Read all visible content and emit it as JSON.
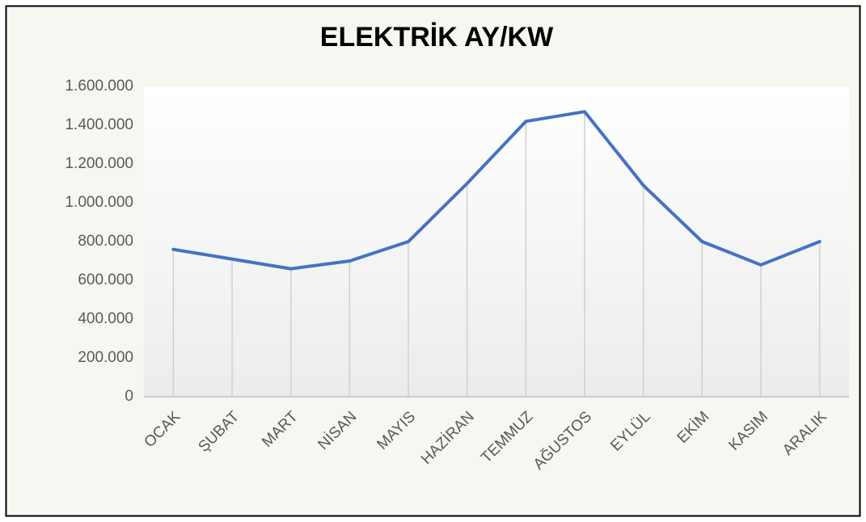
{
  "chart_data": {
    "type": "line",
    "title": "ELEKTRİK  AY/KW",
    "categories": [
      "OCAK",
      "ŞUBAT",
      "MART",
      "NİSAN",
      "MAYIS",
      "HAZİRAN",
      "TEMMUZ",
      "AĞUSTOS",
      "EYLÜL",
      "EKİM",
      "KASIM",
      "ARALIK"
    ],
    "values": [
      760000,
      710000,
      660000,
      700000,
      800000,
      1100000,
      1420000,
      1470000,
      1090000,
      800000,
      680000,
      800000
    ],
    "color": "#4472c4",
    "ylim": [
      0,
      1600000
    ],
    "yticks": [
      0,
      {
        "value": 200000,
        "label": "200.000"
      },
      {
        "value": 400000,
        "label": "400.000"
      },
      {
        "value": 600000,
        "label": "600.000"
      },
      {
        "value": 800000,
        "label": "800.000"
      },
      {
        "value": 1000000,
        "label": "1.000.000"
      },
      {
        "value": 1200000,
        "label": "1.200.000"
      },
      {
        "value": 1400000,
        "label": "1.400.000"
      },
      {
        "value": 1600000,
        "label": "1.600.000"
      }
    ],
    "drop_lines": true
  }
}
